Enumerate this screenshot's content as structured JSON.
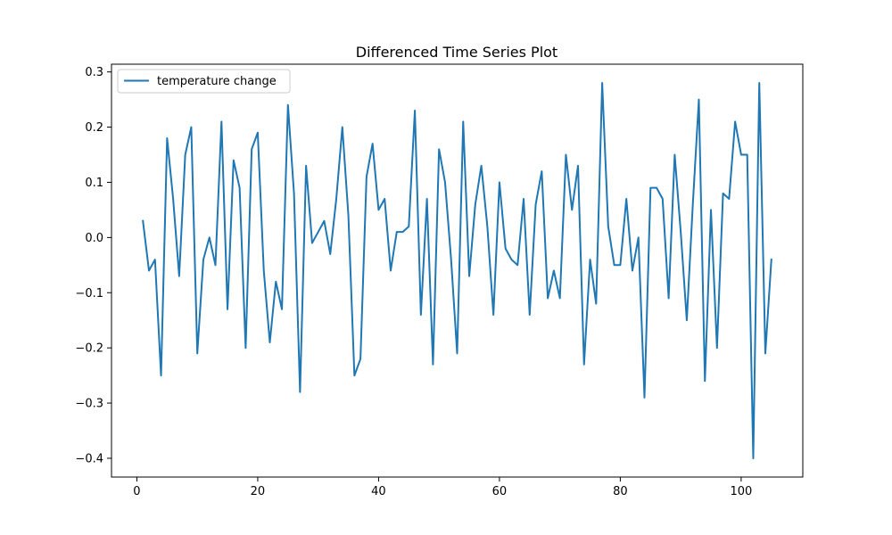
{
  "chart_data": {
    "type": "line",
    "title": "Differenced Time Series Plot",
    "xlabel": "",
    "ylabel": "",
    "xlim": [
      -4.2,
      110.2
    ],
    "ylim": [
      -0.434,
      0.314
    ],
    "xticks": [
      0,
      20,
      40,
      60,
      80,
      100
    ],
    "yticks": [
      -0.4,
      -0.3,
      -0.2,
      -0.1,
      0.0,
      0.1,
      0.2,
      0.3
    ],
    "xtick_labels": [
      "0",
      "20",
      "40",
      "60",
      "80",
      "100"
    ],
    "ytick_labels": [
      "−0.4",
      "−0.3",
      "−0.2",
      "−0.1",
      "0.0",
      "0.1",
      "0.2",
      "0.3"
    ],
    "grid": false,
    "legend_position": "top-left",
    "series": [
      {
        "name": "temperature change",
        "color": "#1f77b4",
        "x": [
          1,
          2,
          3,
          4,
          5,
          6,
          7,
          8,
          9,
          10,
          11,
          12,
          13,
          14,
          15,
          16,
          17,
          18,
          19,
          20,
          21,
          22,
          23,
          24,
          25,
          26,
          27,
          28,
          29,
          30,
          31,
          32,
          33,
          34,
          35,
          36,
          37,
          38,
          39,
          40,
          41,
          42,
          43,
          44,
          45,
          46,
          47,
          48,
          49,
          50,
          51,
          52,
          53,
          54,
          55,
          56,
          57,
          58,
          59,
          60,
          61,
          62,
          63,
          64,
          65,
          66,
          67,
          68,
          69,
          70,
          71,
          72,
          73,
          74,
          75,
          76,
          77,
          78,
          79,
          80,
          81,
          82,
          83,
          84,
          85,
          86,
          87,
          88,
          89,
          90,
          91,
          92,
          93,
          94,
          95,
          96,
          97,
          98,
          99,
          100,
          101,
          102,
          103,
          104,
          105
        ],
        "values": [
          0.03,
          -0.06,
          -0.04,
          -0.25,
          0.18,
          0.07,
          -0.07,
          0.15,
          0.2,
          -0.21,
          -0.04,
          0.0,
          -0.05,
          0.21,
          -0.13,
          0.14,
          0.09,
          -0.2,
          0.16,
          0.19,
          -0.06,
          -0.19,
          -0.08,
          -0.13,
          0.24,
          0.08,
          -0.28,
          0.13,
          -0.01,
          0.01,
          0.03,
          -0.03,
          0.07,
          0.2,
          0.04,
          -0.25,
          -0.22,
          0.11,
          0.17,
          0.05,
          0.07,
          -0.06,
          0.01,
          0.01,
          0.02,
          0.23,
          -0.14,
          0.07,
          -0.23,
          0.16,
          0.1,
          -0.04,
          -0.21,
          0.21,
          -0.07,
          0.06,
          0.13,
          0.02,
          -0.14,
          0.1,
          -0.02,
          -0.04,
          -0.05,
          0.07,
          -0.14,
          0.06,
          0.12,
          -0.11,
          -0.06,
          -0.11,
          0.15,
          0.05,
          0.13,
          -0.23,
          -0.04,
          -0.12,
          0.28,
          0.02,
          -0.05,
          -0.05,
          0.07,
          -0.06,
          0.0,
          -0.29,
          0.09,
          0.09,
          0.07,
          -0.11,
          0.15,
          0.01,
          -0.15,
          0.06,
          0.25,
          -0.26,
          0.05,
          -0.2,
          0.08,
          0.07,
          0.21,
          0.15,
          0.15,
          -0.4,
          0.28,
          -0.21,
          -0.04
        ]
      }
    ]
  }
}
